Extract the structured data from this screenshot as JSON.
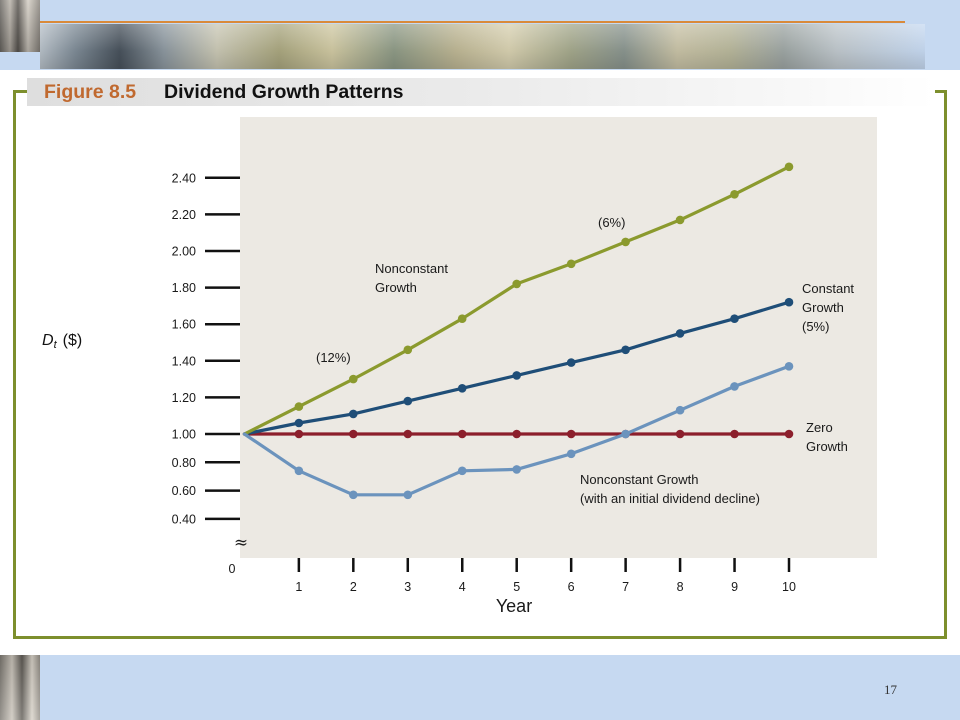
{
  "slide": {
    "page_number": "17"
  },
  "colors": {
    "band": "#c6d9f1",
    "frame": "#7d8f2d",
    "accent_line": "#d98a3a",
    "figure_label": "#c0692f",
    "plot_background": "#ece9e3"
  },
  "chart_data": {
    "type": "line",
    "figure_label": "Figure 8.5",
    "title": "Dividend Growth Patterns",
    "xlabel": "Year",
    "ylabel": {
      "symbol": "D",
      "subscript": "t",
      "unit": "($)"
    },
    "x": [
      0,
      1,
      2,
      3,
      4,
      5,
      6,
      7,
      8,
      9,
      10
    ],
    "origin_label": "0",
    "x_tick_labels": [
      "1",
      "2",
      "3",
      "4",
      "5",
      "6",
      "7",
      "8",
      "9",
      "10"
    ],
    "y_tick_labels": [
      "0.40",
      "0.60",
      "0.80",
      "1.00",
      "1.20",
      "1.40",
      "1.60",
      "1.80",
      "2.00",
      "2.20",
      "2.40"
    ],
    "ylim": [
      0.4,
      2.4
    ],
    "y_axis_break": true,
    "axis_break_symbol": "≈",
    "grid": false,
    "legend": "none",
    "series": [
      {
        "label_lines": [
          "Nonconstant",
          "Growth"
        ],
        "rate_labels": [
          "(12%)",
          "(6%)"
        ],
        "values": [
          1.0,
          1.15,
          1.3,
          1.46,
          1.63,
          1.82,
          1.93,
          2.05,
          2.17,
          2.31,
          2.46
        ],
        "color": "#8b9a2e"
      },
      {
        "label_lines": [
          "Constant",
          "Growth",
          "(5%)"
        ],
        "values": [
          1.0,
          1.06,
          1.11,
          1.18,
          1.25,
          1.32,
          1.39,
          1.46,
          1.55,
          1.63,
          1.72
        ],
        "color": "#1f4e78"
      },
      {
        "label_lines": [
          "Zero",
          "Growth"
        ],
        "values": [
          1.0,
          1.0,
          1.0,
          1.0,
          1.0,
          1.0,
          1.0,
          1.0,
          1.0,
          1.0,
          1.0
        ],
        "color": "#8c1f2c"
      },
      {
        "label_lines": [
          "Nonconstant Growth",
          "(with an initial dividend decline)"
        ],
        "values": [
          1.0,
          0.74,
          0.57,
          0.57,
          0.74,
          0.75,
          0.86,
          1.0,
          1.13,
          1.26,
          1.37
        ],
        "color": "#6b93bd"
      }
    ]
  }
}
